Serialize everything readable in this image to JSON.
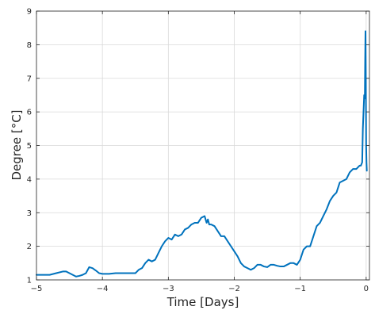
{
  "chart_data": {
    "type": "line",
    "title": "",
    "xlabel": "Time [Days]",
    "ylabel": "Degree [°C]",
    "xlim": [
      -5,
      0.05
    ],
    "ylim": [
      1,
      9
    ],
    "xticks": [
      -5,
      -4,
      -3,
      -2,
      -1,
      0
    ],
    "xtick_labels": [
      "−5",
      "−4",
      "−3",
      "−2",
      "−1",
      "0"
    ],
    "yticks": [
      1,
      2,
      3,
      4,
      5,
      6,
      7,
      8,
      9
    ],
    "ytick_labels": [
      "1",
      "2",
      "3",
      "4",
      "5",
      "6",
      "7",
      "8",
      "9"
    ],
    "grid": true,
    "series": [
      {
        "color": "#0072bd",
        "x": [
          -5.0,
          -4.9,
          -4.8,
          -4.7,
          -4.6,
          -4.55,
          -4.5,
          -4.45,
          -4.4,
          -4.35,
          -4.3,
          -4.25,
          -4.2,
          -4.15,
          -4.1,
          -4.05,
          -4.0,
          -3.9,
          -3.8,
          -3.7,
          -3.6,
          -3.5,
          -3.45,
          -3.4,
          -3.35,
          -3.3,
          -3.25,
          -3.2,
          -3.15,
          -3.1,
          -3.05,
          -3.0,
          -2.95,
          -2.9,
          -2.85,
          -2.8,
          -2.75,
          -2.7,
          -2.65,
          -2.6,
          -2.55,
          -2.5,
          -2.45,
          -2.42,
          -2.4,
          -2.38,
          -2.35,
          -2.3,
          -2.25,
          -2.2,
          -2.15,
          -2.1,
          -2.05,
          -2.0,
          -1.95,
          -1.9,
          -1.85,
          -1.8,
          -1.75,
          -1.7,
          -1.65,
          -1.6,
          -1.55,
          -1.5,
          -1.45,
          -1.4,
          -1.35,
          -1.3,
          -1.25,
          -1.2,
          -1.15,
          -1.1,
          -1.05,
          -1.0,
          -0.95,
          -0.9,
          -0.85,
          -0.8,
          -0.75,
          -0.7,
          -0.65,
          -0.6,
          -0.55,
          -0.5,
          -0.45,
          -0.4,
          -0.35,
          -0.3,
          -0.25,
          -0.2,
          -0.15,
          -0.1,
          -0.08,
          -0.06,
          -0.05,
          -0.04,
          -0.03,
          -0.02,
          -0.015,
          -0.01,
          -0.005,
          0.0,
          0.005,
          0.01
        ],
        "y": [
          1.15,
          1.15,
          1.15,
          1.2,
          1.25,
          1.25,
          1.2,
          1.15,
          1.1,
          1.12,
          1.15,
          1.2,
          1.38,
          1.35,
          1.28,
          1.2,
          1.18,
          1.18,
          1.2,
          1.2,
          1.2,
          1.2,
          1.3,
          1.35,
          1.5,
          1.6,
          1.55,
          1.6,
          1.8,
          2.0,
          2.15,
          2.25,
          2.2,
          2.35,
          2.3,
          2.35,
          2.5,
          2.55,
          2.65,
          2.7,
          2.7,
          2.85,
          2.9,
          2.7,
          2.8,
          2.65,
          2.65,
          2.6,
          2.45,
          2.3,
          2.3,
          2.15,
          2.0,
          1.85,
          1.7,
          1.5,
          1.4,
          1.35,
          1.3,
          1.35,
          1.45,
          1.45,
          1.4,
          1.38,
          1.45,
          1.45,
          1.42,
          1.4,
          1.4,
          1.45,
          1.5,
          1.5,
          1.45,
          1.6,
          1.9,
          2.0,
          2.0,
          2.3,
          2.6,
          2.7,
          2.9,
          3.1,
          3.35,
          3.5,
          3.6,
          3.9,
          3.95,
          4.0,
          4.2,
          4.3,
          4.3,
          4.4,
          4.4,
          4.5,
          5.5,
          6.0,
          6.5,
          6.4,
          7.5,
          8.4,
          7.0,
          5.0,
          4.5,
          4.25
        ]
      }
    ]
  }
}
